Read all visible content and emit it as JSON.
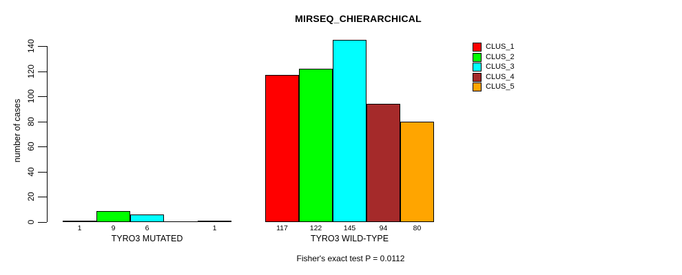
{
  "chart_data": {
    "type": "bar",
    "title": "MIRSEQ_CHIERARCHICAL",
    "ylabel": "number of cases",
    "footnote": "Fisher's exact test P = 0.0112",
    "ylim": [
      0,
      140
    ],
    "yticks": [
      0,
      20,
      40,
      60,
      80,
      100,
      120,
      140
    ],
    "grid": false,
    "legend_position": "right-outside",
    "categories": [
      "TYRO3 MUTATED",
      "TYRO3 WILD-TYPE"
    ],
    "series": [
      {
        "name": "CLUS_1",
        "color": "#FF0000",
        "values": [
          1,
          117
        ]
      },
      {
        "name": "CLUS_2",
        "color": "#00FF00",
        "values": [
          9,
          122
        ]
      },
      {
        "name": "CLUS_3",
        "color": "#00FFFF",
        "values": [
          6,
          145
        ]
      },
      {
        "name": "CLUS_4",
        "color": "#A52A2A",
        "values": [
          0,
          94
        ]
      },
      {
        "name": "CLUS_5",
        "color": "#FFA500",
        "values": [
          1,
          80
        ]
      }
    ],
    "bar_label_rule": "value shown under each bar; zero values unlabeled",
    "axis_color": "#000000",
    "bar_border_color": "#000000",
    "background_color": "#FFFFFF"
  }
}
